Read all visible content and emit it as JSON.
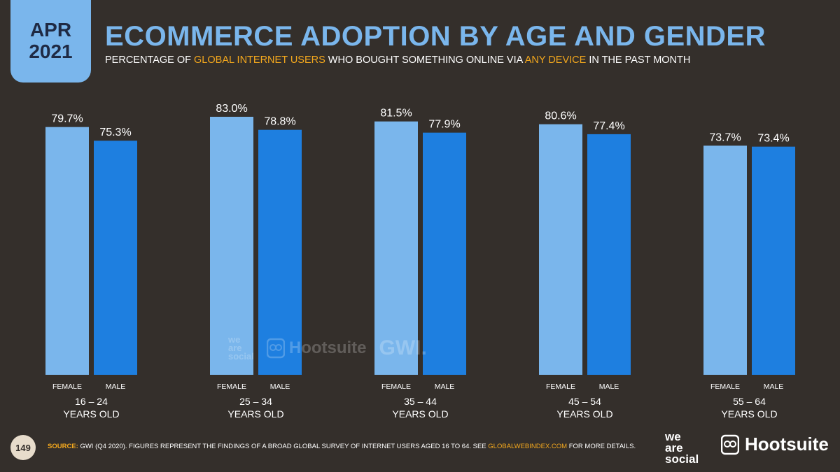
{
  "badge": {
    "month": "APR",
    "year": "2021"
  },
  "header": {
    "title": "ECOMMERCE ADOPTION BY AGE AND GENDER",
    "subtitle_part1": "PERCENTAGE OF ",
    "subtitle_hl1": "GLOBAL INTERNET USERS",
    "subtitle_part2": " WHO BOUGHT SOMETHING ONLINE VIA ",
    "subtitle_hl2": "ANY DEVICE",
    "subtitle_part3": " IN THE PAST MONTH"
  },
  "chart_data": {
    "type": "bar",
    "categories": [
      "16 – 24",
      "25 – 34",
      "35 – 44",
      "45 – 54",
      "55 – 64"
    ],
    "category_suffix": "YEARS OLD",
    "series": [
      {
        "name": "FEMALE",
        "color": "#7ab6ec",
        "values": [
          79.7,
          83.0,
          81.5,
          80.6,
          73.7
        ]
      },
      {
        "name": "MALE",
        "color": "#1e7fe0",
        "values": [
          75.3,
          78.8,
          77.9,
          77.4,
          73.4
        ]
      }
    ],
    "value_suffix": "%",
    "ylim": [
      0,
      83.0
    ],
    "grid": false
  },
  "watermark": {
    "was": [
      "we",
      "are",
      "social"
    ],
    "hootsuite": "Hootsuite",
    "gwi": "GWI."
  },
  "footer": {
    "page_number": "149",
    "source_label": "SOURCE:",
    "source_text": " GWI (Q4 2020). FIGURES REPRESENT THE FINDINGS OF A BROAD GLOBAL SURVEY OF INTERNET USERS AGED 16 TO 64. SEE ",
    "source_link": "GLOBALWEBINDEX.COM",
    "source_end": " FOR MORE DETAILS.",
    "logo_was": [
      "we",
      "are",
      "social"
    ],
    "logo_hootsuite": "Hootsuite"
  },
  "colors": {
    "background": "#342f2b",
    "accent": "#7ab6ec",
    "highlight": "#f4a81d"
  }
}
